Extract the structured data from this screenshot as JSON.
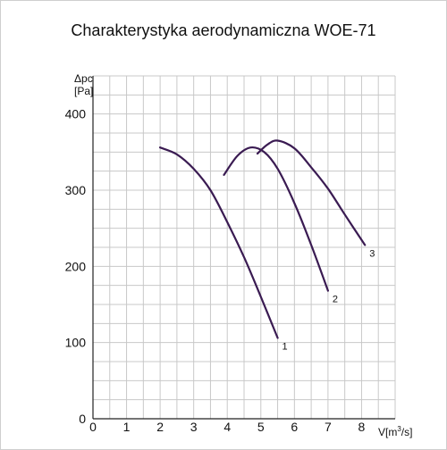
{
  "chart_data": {
    "type": "line",
    "title": "Charakterystyka aerodynamiczna WOE-71",
    "ylabel_line1": "Δpc",
    "ylabel_line2": "[Pa]",
    "xlabel_main": "V[m",
    "xlabel_sup": "3",
    "xlabel_end": "/s]",
    "xlim": [
      0,
      9
    ],
    "ylim": [
      0,
      450
    ],
    "x_ticks": [
      "0",
      "1",
      "2",
      "3",
      "4",
      "5",
      "6",
      "7",
      "8"
    ],
    "y_ticks": [
      "0",
      "100",
      "200",
      "300",
      "400"
    ],
    "grid": true,
    "colors": {
      "curve": "#3a1b52",
      "grid": "#c8c8c8",
      "axis": "#222222"
    },
    "series": [
      {
        "label": "1",
        "x": [
          2.0,
          2.5,
          3.0,
          3.5,
          4.0,
          4.5,
          5.0,
          5.5
        ],
        "y": [
          356,
          347,
          328,
          300,
          258,
          212,
          160,
          106
        ]
      },
      {
        "label": "2",
        "x": [
          3.9,
          4.3,
          4.7,
          5.1,
          5.5,
          6.0,
          6.5,
          7.0
        ],
        "y": [
          320,
          345,
          356,
          350,
          328,
          283,
          228,
          168
        ]
      },
      {
        "label": "3",
        "x": [
          4.9,
          5.2,
          5.5,
          6.0,
          6.5,
          7.0,
          7.5,
          8.1
        ],
        "y": [
          348,
          360,
          365,
          355,
          330,
          302,
          268,
          228
        ]
      }
    ]
  }
}
